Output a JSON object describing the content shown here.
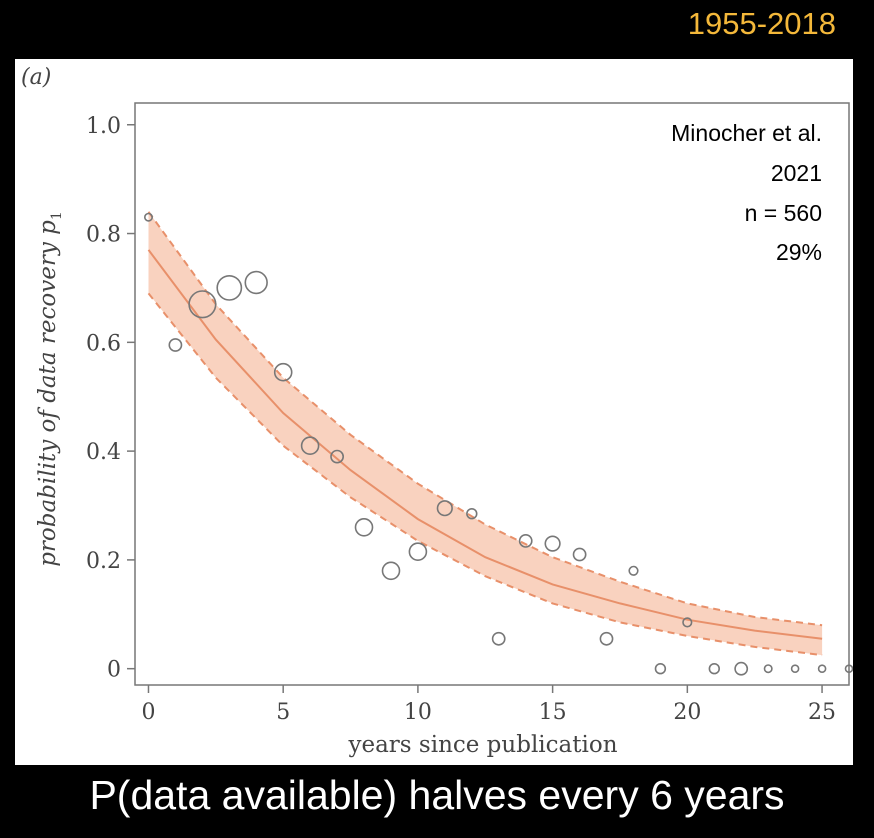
{
  "header": {
    "year_range": "1955-2018"
  },
  "footer": {
    "caption": "P(data available) halves every 6 years"
  },
  "chart_data": {
    "type": "scatter",
    "panel_label": "(a)",
    "xlabel": "years since publication",
    "ylabel": "probability of data recovery p",
    "ylabel_subscript": "1",
    "xlim": [
      -0.5,
      26
    ],
    "ylim": [
      -0.03,
      1.04
    ],
    "x_ticks": [
      0,
      5,
      10,
      15,
      20,
      25
    ],
    "x_tick_labels": [
      "0",
      "5",
      "10",
      "15",
      "20",
      "25"
    ],
    "y_ticks": [
      0,
      0.2,
      0.4,
      0.6,
      0.8,
      1.0
    ],
    "y_tick_labels": [
      "0",
      "0.2",
      "0.4",
      "0.6",
      "0.8",
      "1.0"
    ],
    "annotation": [
      "Minocher et al.",
      "2021",
      "n = 560",
      "29%"
    ],
    "points": [
      {
        "x": 0,
        "y": 0.83,
        "size": 1
      },
      {
        "x": 1,
        "y": 0.595,
        "size": 3
      },
      {
        "x": 2,
        "y": 0.67,
        "size": 9
      },
      {
        "x": 3,
        "y": 0.7,
        "size": 8
      },
      {
        "x": 4,
        "y": 0.71,
        "size": 7
      },
      {
        "x": 5,
        "y": 0.545,
        "size": 5
      },
      {
        "x": 6,
        "y": 0.41,
        "size": 5
      },
      {
        "x": 7,
        "y": 0.39,
        "size": 3
      },
      {
        "x": 8,
        "y": 0.26,
        "size": 5
      },
      {
        "x": 9,
        "y": 0.18,
        "size": 5
      },
      {
        "x": 10,
        "y": 0.215,
        "size": 5
      },
      {
        "x": 11,
        "y": 0.295,
        "size": 4
      },
      {
        "x": 12,
        "y": 0.285,
        "size": 2
      },
      {
        "x": 13,
        "y": 0.055,
        "size": 3
      },
      {
        "x": 14,
        "y": 0.235,
        "size": 3
      },
      {
        "x": 15,
        "y": 0.23,
        "size": 4
      },
      {
        "x": 16,
        "y": 0.21,
        "size": 3
      },
      {
        "x": 17,
        "y": 0.055,
        "size": 3
      },
      {
        "x": 18,
        "y": 0.18,
        "size": 1.5
      },
      {
        "x": 19,
        "y": 0.0,
        "size": 2
      },
      {
        "x": 20,
        "y": 0.085,
        "size": 1.5
      },
      {
        "x": 21,
        "y": 0.0,
        "size": 2
      },
      {
        "x": 22,
        "y": 0.0,
        "size": 3
      },
      {
        "x": 23,
        "y": 0.0,
        "size": 1
      },
      {
        "x": 24,
        "y": 0.0,
        "size": 0.8
      },
      {
        "x": 25,
        "y": 0.0,
        "size": 0.8
      },
      {
        "x": 26,
        "y": 0.0,
        "size": 0.8
      }
    ],
    "fit": {
      "x": [
        0,
        2.5,
        5,
        7.5,
        10,
        12.5,
        15,
        17.5,
        20,
        22.5,
        25
      ],
      "y": [
        0.77,
        0.605,
        0.47,
        0.365,
        0.275,
        0.205,
        0.155,
        0.12,
        0.09,
        0.07,
        0.055
      ],
      "lower": [
        0.69,
        0.535,
        0.41,
        0.315,
        0.235,
        0.17,
        0.12,
        0.085,
        0.06,
        0.04,
        0.025
      ],
      "upper": [
        0.84,
        0.67,
        0.535,
        0.43,
        0.34,
        0.265,
        0.205,
        0.16,
        0.12,
        0.095,
        0.08
      ]
    },
    "colors": {
      "fit": "#e8906a",
      "band": "#f9d2bf",
      "points": "#777777"
    },
    "grid": false,
    "legend": "none"
  }
}
